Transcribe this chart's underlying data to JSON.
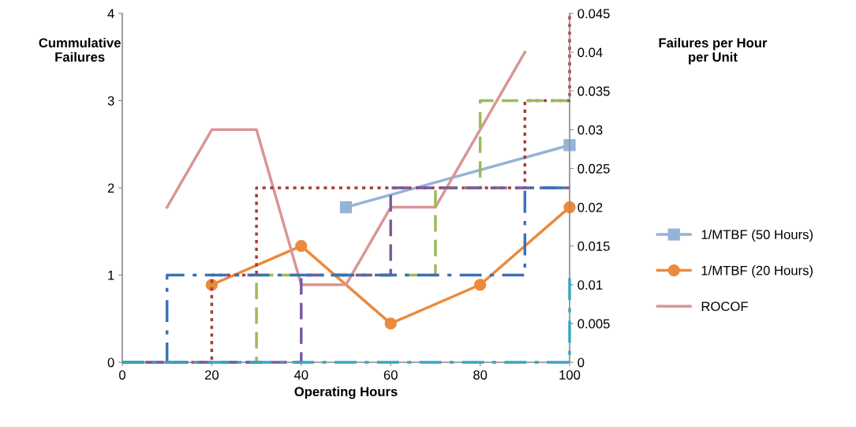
{
  "chart_data": {
    "type": "line",
    "xlabel": "Operating Hours",
    "ylabel": "Cummulative Failures",
    "y2label": "Failures per Hour per Unit",
    "xlim": [
      0,
      100
    ],
    "xticks": [
      0,
      20,
      40,
      60,
      80,
      100
    ],
    "ylim": [
      0,
      4
    ],
    "yticks": [
      0,
      1,
      2,
      3,
      4
    ],
    "y2lim": [
      0,
      0.045
    ],
    "y2ticks": [
      0,
      0.005,
      0.01,
      0.015,
      0.02,
      0.025,
      0.03,
      0.035,
      0.04,
      0.045
    ],
    "grid": false,
    "legend": "right",
    "series": [
      {
        "type": "step",
        "color": "#a83a3a",
        "line_style": "dotted",
        "marker": "none",
        "x": [
          0,
          20,
          30,
          90,
          100
        ],
        "values": [
          0,
          1,
          2,
          3,
          4
        ]
      },
      {
        "type": "step",
        "color": "#9bbb59",
        "line_style": "dashed",
        "marker": "none",
        "x": [
          0,
          30,
          70,
          80,
          100
        ],
        "values": [
          0,
          1,
          2,
          3,
          3
        ]
      },
      {
        "type": "step",
        "color": "#7a5aa0",
        "line_style": "dashed",
        "marker": "none",
        "x": [
          0,
          40,
          60,
          100
        ],
        "values": [
          0,
          1,
          2,
          2
        ]
      },
      {
        "type": "step",
        "color": "#3c72b4",
        "line_style": "dashdot",
        "marker": "none",
        "x": [
          0,
          10,
          90,
          100
        ],
        "values": [
          0,
          1,
          2,
          2
        ]
      },
      {
        "type": "step",
        "color": "#3ba5bd",
        "line_style": "dashdot",
        "marker": "none",
        "x": [
          0,
          50,
          100
        ],
        "values": [
          0,
          0,
          1
        ]
      },
      {
        "name": "1/MTBF (50 Hours)",
        "axis": "y2",
        "color": "#95b3d7",
        "line_style": "solid",
        "marker": "square",
        "x": [
          50,
          100
        ],
        "values": [
          0.02,
          0.028
        ]
      },
      {
        "name": "1/MTBF (20 Hours)",
        "axis": "y2",
        "color": "#eb8a3c",
        "line_style": "solid",
        "marker": "circle",
        "x": [
          20,
          40,
          60,
          80,
          100
        ],
        "values": [
          0.01,
          0.015,
          0.005,
          0.01,
          0.02
        ]
      },
      {
        "name": "ROCOF",
        "axis": "y2",
        "color": "#d99694",
        "line_style": "solid",
        "marker": "none",
        "x": [
          10,
          20,
          30,
          40,
          50,
          60,
          70,
          80,
          90
        ],
        "values": [
          0.02,
          0.03,
          0.03,
          0.01,
          0.01,
          0.02,
          0.02,
          0.03,
          0.04
        ]
      }
    ]
  }
}
